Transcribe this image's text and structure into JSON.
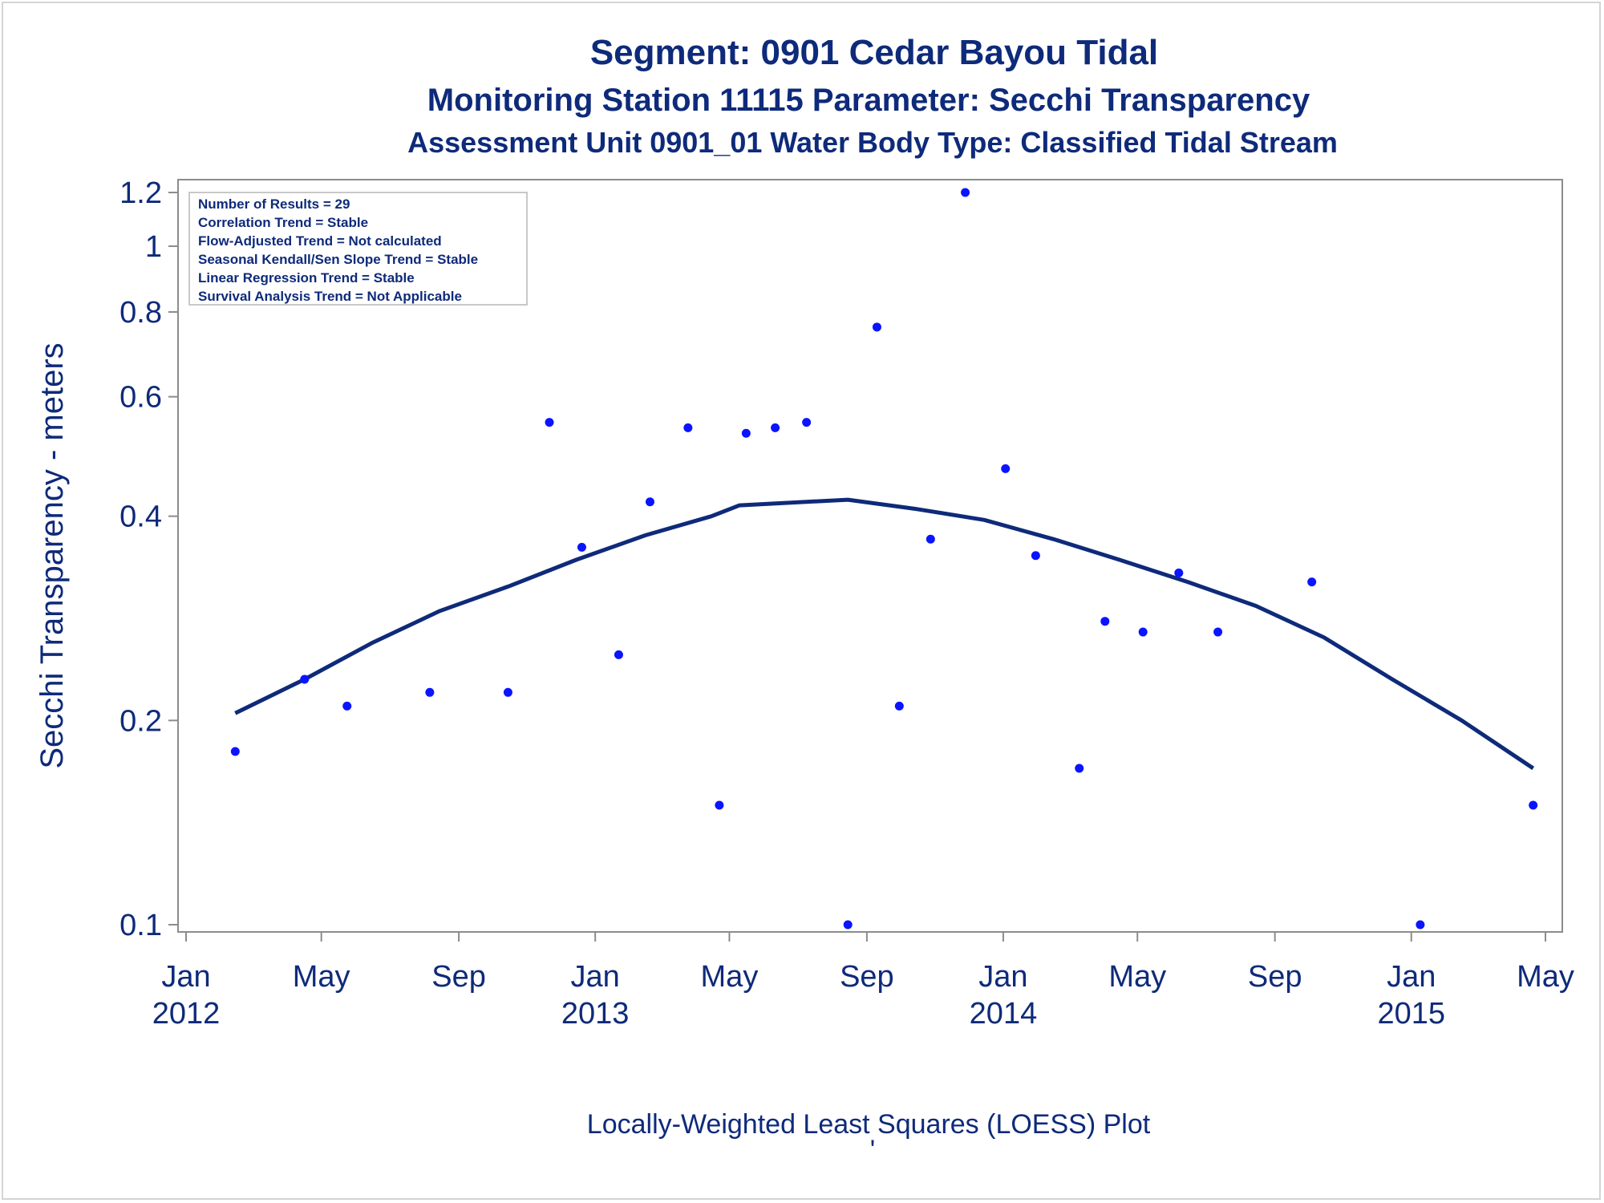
{
  "colors": {
    "text": "#0e2a7a",
    "points": "#0a14ff",
    "curve": "#0e2a7a",
    "axis": "#8c8c8c"
  },
  "titles": {
    "line1": "Segment: 0901  Cedar Bayou Tidal",
    "line2": "Monitoring Station 11115 Parameter: Secchi Transparency",
    "line3": "Assessment Unit 0901_01   Water Body Type: Classified Tidal Stream"
  },
  "stats_box": [
    "Number of Results = 29",
    "Correlation Trend = Stable",
    "Flow-Adjusted Trend = Not calculated",
    "Seasonal Kendall/Sen Slope Trend = Stable",
    "Linear Regression Trend = Stable",
    "Survival Analysis Trend = Not Applicable"
  ],
  "footnote": "Locally-Weighted Least Squares (LOESS) Plot",
  "footnote_mark": "'",
  "chart_data": {
    "type": "scatter",
    "yscale": "log",
    "ylabel": "Secchi Transparency - meters",
    "xlabel": "",
    "ylim": [
      0.1,
      1.25
    ],
    "xlim": [
      "2012-01-01",
      "2015-05-01"
    ],
    "y_ticks": [
      {
        "value": 0.1,
        "label": "0.1"
      },
      {
        "value": 0.2,
        "label": "0.2"
      },
      {
        "value": 0.4,
        "label": "0.4"
      },
      {
        "value": 0.6,
        "label": "0.6"
      },
      {
        "value": 0.8,
        "label": "0.8"
      },
      {
        "value": 1.0,
        "label": "1"
      },
      {
        "value": 1.2,
        "label": "1.2"
      }
    ],
    "x_ticks": [
      {
        "date": "2012-01-01",
        "label": "Jan",
        "label2": "2012"
      },
      {
        "date": "2012-05-01",
        "label": "May",
        "label2": ""
      },
      {
        "date": "2012-09-01",
        "label": "Sep",
        "label2": ""
      },
      {
        "date": "2013-01-01",
        "label": "Jan",
        "label2": "2013"
      },
      {
        "date": "2013-05-01",
        "label": "May",
        "label2": ""
      },
      {
        "date": "2013-09-01",
        "label": "Sep",
        "label2": ""
      },
      {
        "date": "2014-01-01",
        "label": "Jan",
        "label2": "2014"
      },
      {
        "date": "2014-05-01",
        "label": "May",
        "label2": ""
      },
      {
        "date": "2014-09-01",
        "label": "Sep",
        "label2": ""
      },
      {
        "date": "2015-01-01",
        "label": "Jan",
        "label2": "2015"
      },
      {
        "date": "2015-05-01",
        "label": "May",
        "label2": ""
      }
    ],
    "points": [
      {
        "date": "2012-02-14",
        "value": 0.18
      },
      {
        "date": "2012-04-16",
        "value": 0.23
      },
      {
        "date": "2012-05-24",
        "value": 0.21
      },
      {
        "date": "2012-08-06",
        "value": 0.22
      },
      {
        "date": "2012-10-15",
        "value": 0.22
      },
      {
        "date": "2012-11-21",
        "value": 0.55
      },
      {
        "date": "2012-12-20",
        "value": 0.36
      },
      {
        "date": "2013-01-22",
        "value": 0.25
      },
      {
        "date": "2013-02-19",
        "value": 0.42
      },
      {
        "date": "2013-03-25",
        "value": 0.54
      },
      {
        "date": "2013-04-22",
        "value": 0.15
      },
      {
        "date": "2013-05-16",
        "value": 0.53
      },
      {
        "date": "2013-06-11",
        "value": 0.54
      },
      {
        "date": "2013-07-09",
        "value": 0.55
      },
      {
        "date": "2013-08-15",
        "value": 0.1
      },
      {
        "date": "2013-09-10",
        "value": 0.76
      },
      {
        "date": "2013-09-30",
        "value": 0.21
      },
      {
        "date": "2013-10-28",
        "value": 0.37
      },
      {
        "date": "2013-11-28",
        "value": 1.2
      },
      {
        "date": "2014-01-03",
        "value": 0.47
      },
      {
        "date": "2014-01-30",
        "value": 0.35
      },
      {
        "date": "2014-03-10",
        "value": 0.17
      },
      {
        "date": "2014-04-02",
        "value": 0.28
      },
      {
        "date": "2014-05-06",
        "value": 0.27
      },
      {
        "date": "2014-06-07",
        "value": 0.33
      },
      {
        "date": "2014-07-12",
        "value": 0.27
      },
      {
        "date": "2014-10-04",
        "value": 0.32
      },
      {
        "date": "2015-01-09",
        "value": 0.1
      },
      {
        "date": "2015-04-20",
        "value": 0.15
      }
    ],
    "loess": [
      {
        "date": "2012-02-14",
        "value": 0.205
      },
      {
        "date": "2012-04-16",
        "value": 0.23
      },
      {
        "date": "2012-06-15",
        "value": 0.26
      },
      {
        "date": "2012-08-15",
        "value": 0.29
      },
      {
        "date": "2012-10-15",
        "value": 0.315
      },
      {
        "date": "2012-12-15",
        "value": 0.345
      },
      {
        "date": "2013-02-15",
        "value": 0.375
      },
      {
        "date": "2013-04-15",
        "value": 0.4
      },
      {
        "date": "2013-05-10",
        "value": 0.415
      },
      {
        "date": "2013-08-15",
        "value": 0.423
      },
      {
        "date": "2013-10-15",
        "value": 0.41
      },
      {
        "date": "2013-12-15",
        "value": 0.395
      },
      {
        "date": "2014-02-15",
        "value": 0.37
      },
      {
        "date": "2014-04-15",
        "value": 0.345
      },
      {
        "date": "2014-06-15",
        "value": 0.32
      },
      {
        "date": "2014-08-15",
        "value": 0.295
      },
      {
        "date": "2014-10-15",
        "value": 0.265
      },
      {
        "date": "2014-12-15",
        "value": 0.23
      },
      {
        "date": "2015-02-15",
        "value": 0.2
      },
      {
        "date": "2015-04-20",
        "value": 0.17
      }
    ]
  }
}
